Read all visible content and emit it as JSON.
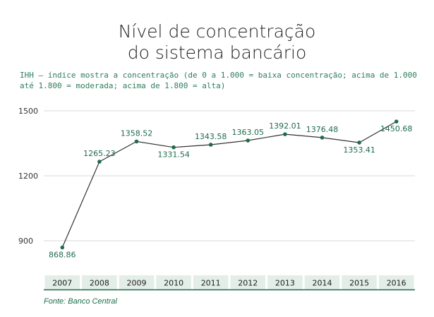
{
  "title": [
    "Nível de concentração",
    "do sistema bancário"
  ],
  "subtitle": [
    "IHH – índice mostra a concentração (de 0 a 1.000 = baixa concentração; acima de 1.000",
    "até 1.800 = moderada; acima de 1.800 = alta)"
  ],
  "source": "Fonte: Banco Central",
  "colors": {
    "line": "#333333",
    "point": "#1f6b4c",
    "label": "#1f6b4c",
    "band": "#e3eee8",
    "axis_bottom": "#1f6b4c",
    "grid": "#d9d9d9"
  },
  "chart_data": {
    "type": "line",
    "title": "Nível de concentração do sistema bancário",
    "xlabel": "",
    "ylabel": "",
    "categories": [
      "2007",
      "2008",
      "2009",
      "2010",
      "2011",
      "2012",
      "2013",
      "2014",
      "2015",
      "2016"
    ],
    "values": [
      868.86,
      1265.23,
      1358.52,
      1331.54,
      1343.58,
      1363.05,
      1392.01,
      1376.48,
      1353.41,
      1450.68
    ],
    "value_labels": [
      "868.86",
      "1265.23",
      "1358.52",
      "1331.54",
      "1343.58",
      "1363.05",
      "1392.01",
      "1376.48",
      "1353.41",
      "1450.68"
    ],
    "yticks": [
      900,
      1200,
      1500
    ],
    "ylim": [
      820,
      1500
    ],
    "grid": true,
    "legend": "none"
  }
}
